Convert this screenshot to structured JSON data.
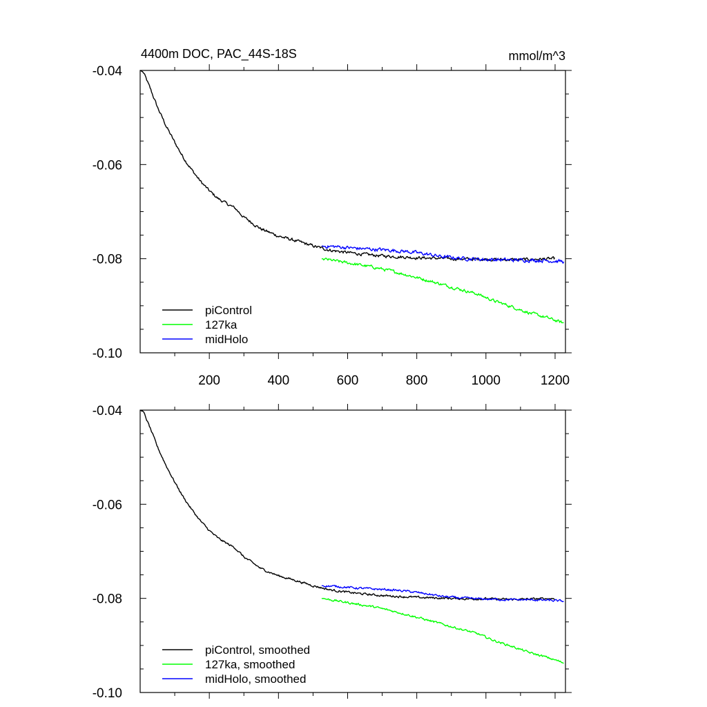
{
  "chart_data": [
    {
      "type": "line",
      "title": "4400m DOC, PAC_44S-18S",
      "units": "mmol/m^3",
      "xlim": [
        0,
        1230
      ],
      "ylim": [
        -0.1,
        -0.04
      ],
      "xticks": [
        200,
        400,
        600,
        800,
        1000,
        1200
      ],
      "xtick_labels": [
        "200",
        "400",
        "600",
        "800",
        "1000",
        "1200"
      ],
      "yticks": [
        -0.04,
        -0.06,
        -0.08,
        -0.1
      ],
      "ytick_labels": [
        "-0.04",
        "-0.06",
        "-0.08",
        "-0.10"
      ],
      "show_xtick_labels": true,
      "legend_position": "bottom-left",
      "series": [
        {
          "name": "piControl",
          "color": "#000000",
          "noise": 0.00025,
          "x": [
            1,
            10,
            30,
            50,
            75,
            100,
            125,
            150,
            175,
            200,
            225,
            250,
            275,
            300,
            350,
            400,
            450,
            500,
            550,
            600,
            650,
            700,
            750,
            800,
            850,
            900,
            950,
            1000,
            1050,
            1100,
            1150,
            1200
          ],
          "values": [
            -0.04,
            -0.0405,
            -0.044,
            -0.0478,
            -0.0518,
            -0.0553,
            -0.0585,
            -0.0612,
            -0.0636,
            -0.0656,
            -0.0672,
            -0.0683,
            -0.0693,
            -0.0712,
            -0.0737,
            -0.0752,
            -0.0762,
            -0.0773,
            -0.0782,
            -0.0787,
            -0.0791,
            -0.0794,
            -0.0796,
            -0.0798,
            -0.0799,
            -0.08,
            -0.0801,
            -0.0801,
            -0.0802,
            -0.0802,
            -0.0801,
            -0.08
          ]
        },
        {
          "name": "127ka",
          "color": "#00ff00",
          "noise": 0.00025,
          "x": [
            525,
            575,
            625,
            675,
            725,
            775,
            825,
            875,
            925,
            975,
            1025,
            1075,
            1125,
            1175,
            1225
          ],
          "values": [
            -0.08,
            -0.0806,
            -0.0812,
            -0.0818,
            -0.0826,
            -0.0835,
            -0.0845,
            -0.0855,
            -0.0865,
            -0.0875,
            -0.089,
            -0.0902,
            -0.0915,
            -0.0925,
            -0.0937
          ]
        },
        {
          "name": "midHolo",
          "color": "#0000ff",
          "noise": 0.0003,
          "x": [
            525,
            575,
            625,
            675,
            725,
            775,
            825,
            875,
            925,
            975,
            1025,
            1075,
            1125,
            1175,
            1225
          ],
          "values": [
            -0.0773,
            -0.0775,
            -0.0778,
            -0.078,
            -0.0782,
            -0.0785,
            -0.079,
            -0.0796,
            -0.0799,
            -0.0801,
            -0.0802,
            -0.0803,
            -0.0803,
            -0.0804,
            -0.0806
          ]
        }
      ]
    },
    {
      "type": "line",
      "title": "",
      "units": "",
      "xlim": [
        0,
        1230
      ],
      "ylim": [
        -0.1,
        -0.04
      ],
      "xticks": [
        200,
        400,
        600,
        800,
        1000,
        1200
      ],
      "xtick_labels": [],
      "yticks": [
        -0.04,
        -0.06,
        -0.08,
        -0.1
      ],
      "ytick_labels": [
        "-0.04",
        "-0.06",
        "-0.08",
        "-0.10"
      ],
      "show_xtick_labels": false,
      "legend_position": "bottom-left",
      "series": [
        {
          "name": "piControl, smoothed",
          "color": "#000000",
          "noise": 0.00018,
          "x": [
            1,
            10,
            30,
            50,
            75,
            100,
            125,
            150,
            175,
            200,
            225,
            250,
            275,
            300,
            350,
            400,
            450,
            500,
            550,
            600,
            650,
            700,
            750,
            800,
            850,
            900,
            950,
            1000,
            1050,
            1100,
            1150,
            1200
          ],
          "values": [
            -0.04,
            -0.0405,
            -0.044,
            -0.0478,
            -0.0518,
            -0.0553,
            -0.0585,
            -0.0612,
            -0.0636,
            -0.0656,
            -0.0672,
            -0.0683,
            -0.0693,
            -0.0712,
            -0.0737,
            -0.0752,
            -0.0762,
            -0.0773,
            -0.0782,
            -0.0787,
            -0.0791,
            -0.0794,
            -0.0796,
            -0.0798,
            -0.0799,
            -0.08,
            -0.0801,
            -0.0801,
            -0.0802,
            -0.0802,
            -0.0801,
            -0.08
          ]
        },
        {
          "name": "127ka, smoothed",
          "color": "#00ff00",
          "noise": 0.00018,
          "x": [
            525,
            575,
            625,
            675,
            725,
            775,
            825,
            875,
            925,
            975,
            1025,
            1075,
            1125,
            1175,
            1225
          ],
          "values": [
            -0.08,
            -0.0806,
            -0.0812,
            -0.0818,
            -0.0826,
            -0.0835,
            -0.0845,
            -0.0855,
            -0.0865,
            -0.0875,
            -0.089,
            -0.0902,
            -0.0915,
            -0.0925,
            -0.0937
          ]
        },
        {
          "name": "midHolo, smoothed",
          "color": "#0000ff",
          "noise": 0.00018,
          "x": [
            525,
            575,
            625,
            675,
            725,
            775,
            825,
            875,
            925,
            975,
            1025,
            1075,
            1125,
            1175,
            1225
          ],
          "values": [
            -0.0773,
            -0.0775,
            -0.0778,
            -0.078,
            -0.0782,
            -0.0785,
            -0.079,
            -0.0796,
            -0.0799,
            -0.0801,
            -0.0802,
            -0.0803,
            -0.0803,
            -0.0804,
            -0.0806
          ]
        }
      ]
    }
  ]
}
